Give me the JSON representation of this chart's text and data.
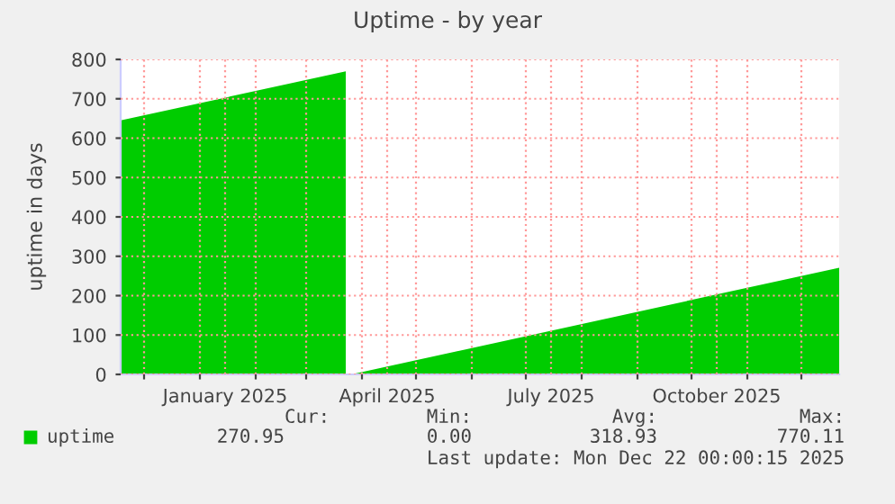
{
  "chart_data": {
    "type": "area",
    "title": "Uptime - by year",
    "ylabel": "uptime in days",
    "x": [
      "2024-11-18",
      "2025-03-23",
      "2025-03-25",
      "2025-03-26",
      "2025-12-22"
    ],
    "series": [
      {
        "name": "uptime",
        "color": "#00cc00",
        "values": [
          645,
          770,
          null,
          0,
          271
        ]
      }
    ],
    "xlim": [
      "2024-11-18",
      "2025-12-22"
    ],
    "xticks": [
      {
        "value": "2024-12-01",
        "label": null
      },
      {
        "value": "2025-01-01",
        "label": null
      },
      {
        "value": "2025-01-15",
        "label": "January 2025"
      },
      {
        "value": "2025-02-01",
        "label": null
      },
      {
        "value": "2025-03-01",
        "label": null
      },
      {
        "value": "2025-04-01",
        "label": null
      },
      {
        "value": "2025-04-15",
        "label": "April 2025"
      },
      {
        "value": "2025-05-01",
        "label": null
      },
      {
        "value": "2025-06-01",
        "label": null
      },
      {
        "value": "2025-07-01",
        "label": null
      },
      {
        "value": "2025-07-15",
        "label": "July 2025"
      },
      {
        "value": "2025-08-01",
        "label": null
      },
      {
        "value": "2025-09-01",
        "label": null
      },
      {
        "value": "2025-10-01",
        "label": null
      },
      {
        "value": "2025-10-15",
        "label": "October 2025"
      },
      {
        "value": "2025-11-01",
        "label": null
      },
      {
        "value": "2025-12-01",
        "label": null
      }
    ],
    "ylim": [
      0,
      800
    ],
    "yticks": [
      0,
      100,
      200,
      300,
      400,
      500,
      600,
      700,
      800
    ],
    "grid": true,
    "legend": "bottom",
    "annotations": [
      "Cur:",
      "Min:",
      "Avg:",
      "Max:",
      "270.95",
      "0.00",
      "318.93",
      "770.11",
      "Last update: Mon Dec 22 00:00:15 2025"
    ]
  }
}
